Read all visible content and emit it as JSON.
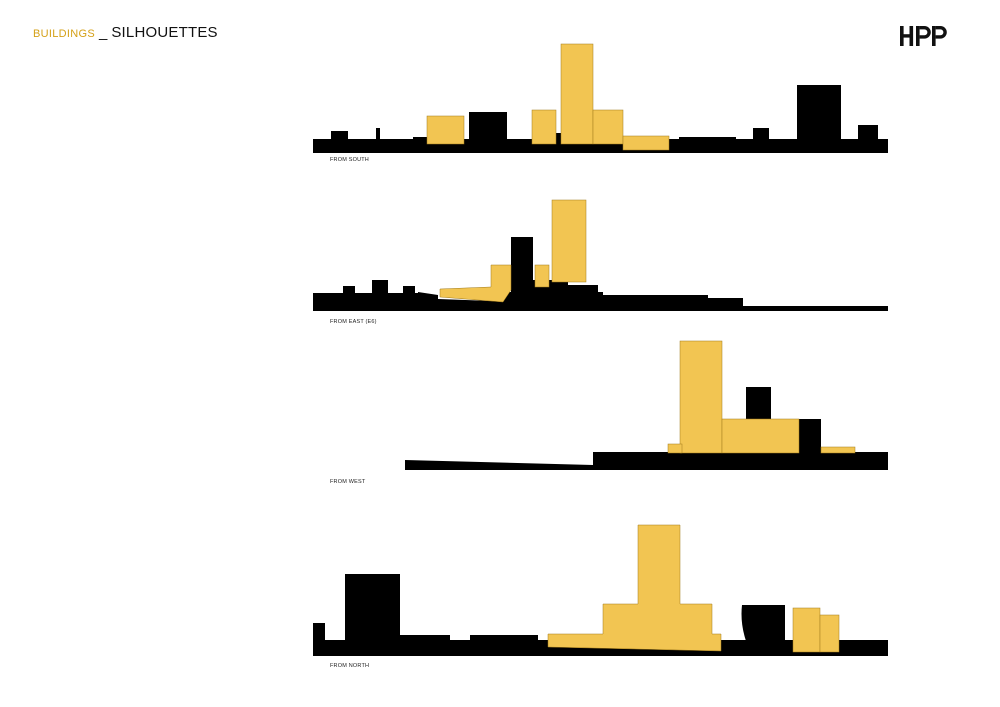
{
  "header": {
    "section": "BUILDINGS",
    "separator": "_",
    "title": "SILHOUETTES"
  },
  "logo": {
    "text": "HPP"
  },
  "colors": {
    "proposed": "#f2c552",
    "existing": "#000000",
    "section": "#d4a017"
  },
  "panels": [
    {
      "label": "FROM SOUTH"
    },
    {
      "label": "FROM EAST (E6)"
    },
    {
      "label": "FROM WEST"
    },
    {
      "label": "FROM NORTH"
    }
  ]
}
